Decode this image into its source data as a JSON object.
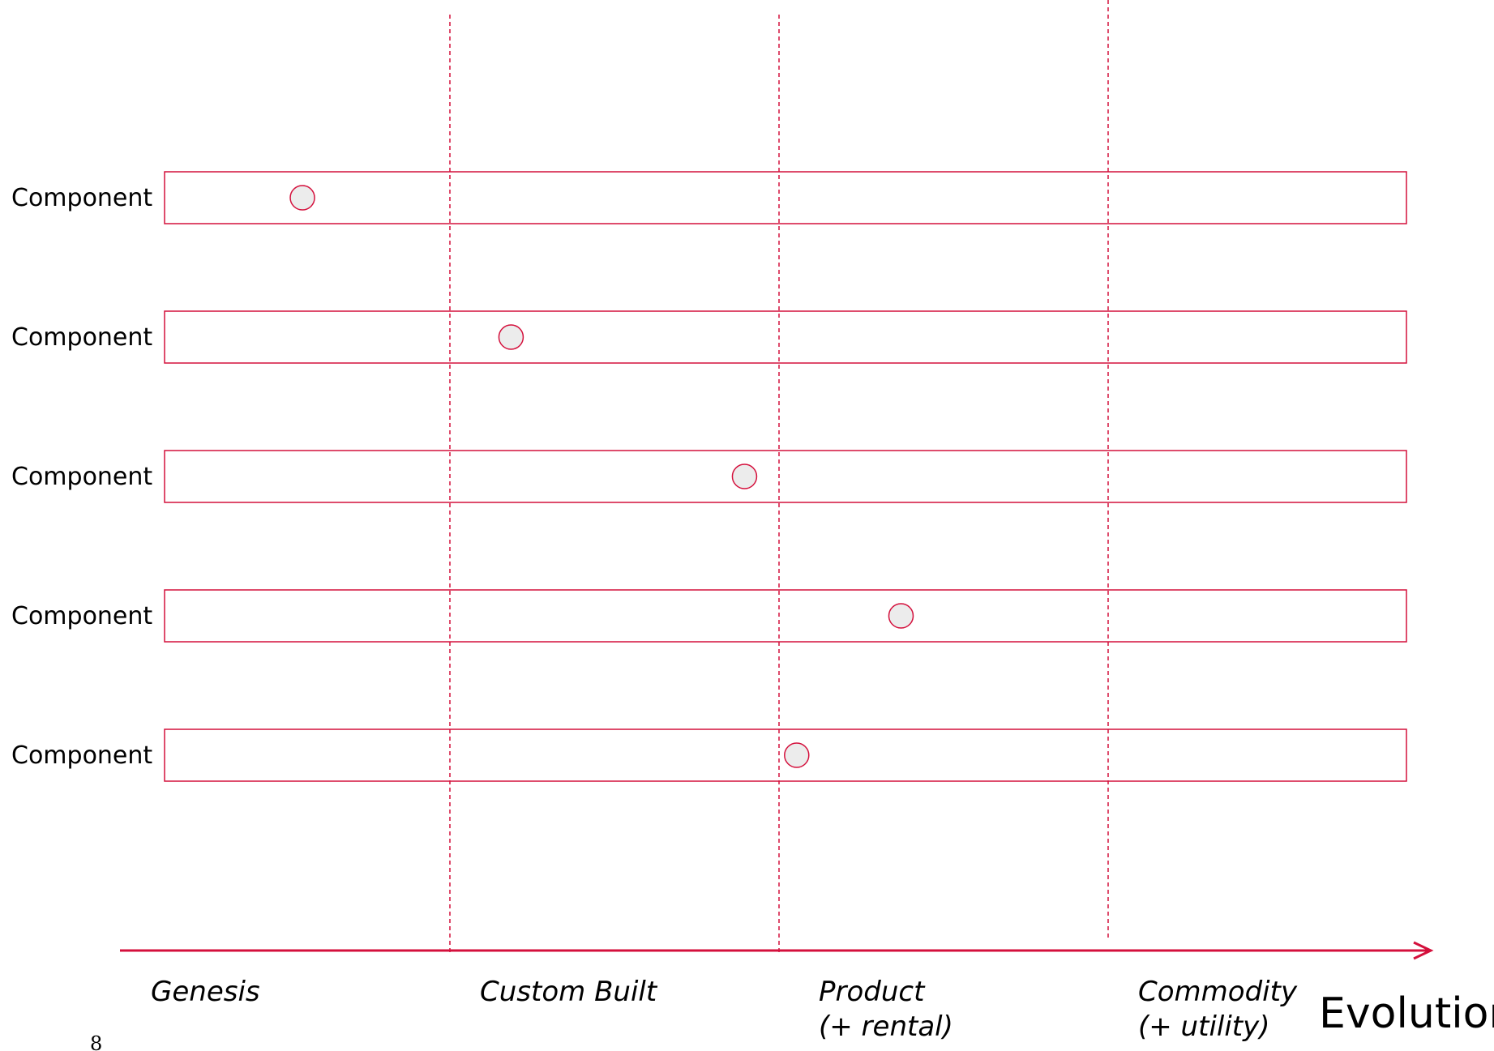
{
  "colors": {
    "accent": "#d4103c",
    "marker_fill": "#ececec",
    "text": "#000000"
  },
  "stages": [
    {
      "line1": "Genesis",
      "line2": ""
    },
    {
      "line1": "Custom Built",
      "line2": ""
    },
    {
      "line1": "Product",
      "line2": "(+ rental)"
    },
    {
      "line1": "Commodity",
      "line2": "(+ utility)"
    }
  ],
  "components": [
    {
      "label": "Component",
      "evolution": 0.111
    },
    {
      "label": "Component",
      "evolution": 0.279
    },
    {
      "label": "Component",
      "evolution": 0.467
    },
    {
      "label": "Component",
      "evolution": 0.593
    },
    {
      "label": "Component",
      "evolution": 0.509
    }
  ],
  "axis": {
    "label": "Evolution"
  },
  "page_number": "8"
}
